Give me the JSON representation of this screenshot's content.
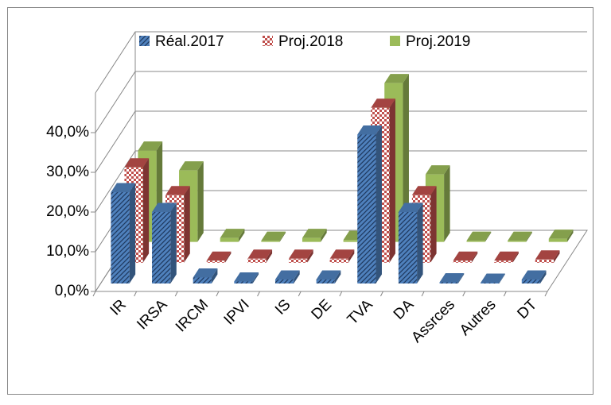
{
  "chart_data": {
    "type": "bar3d",
    "categories": [
      "IR",
      "IRSA",
      "IRCM",
      "IPVI",
      "IS",
      "DE",
      "TVA",
      "DA",
      "Assrces",
      "Autres",
      "DT"
    ],
    "series": [
      {
        "name": "Réal.2017",
        "color": "#4f81bd",
        "pattern": "hatch",
        "values": [
          23,
          18,
          1.5,
          0.5,
          1,
          1,
          37.5,
          18,
          0.3,
          0.2,
          1
        ]
      },
      {
        "name": "Proj.2018",
        "color": "#c0504d",
        "pattern": "check",
        "values": [
          24,
          17,
          0.5,
          1,
          1,
          1,
          39,
          17,
          0.5,
          0.5,
          0.8
        ]
      },
      {
        "name": "Proj.2019",
        "color": "#9bbb59",
        "pattern": "solid",
        "values": [
          23,
          18,
          1,
          0.3,
          1,
          0.5,
          40,
          17,
          0.3,
          0.3,
          0.8
        ]
      }
    ],
    "ylim": [
      0,
      50
    ],
    "yticks": [
      {
        "value": 0,
        "label": "0,0%"
      },
      {
        "value": 10,
        "label": "10,0%"
      },
      {
        "value": 20,
        "label": "20,0%"
      },
      {
        "value": 30,
        "label": "30,0%"
      },
      {
        "value": 40,
        "label": "40,0%"
      }
    ],
    "grid": true,
    "legend": "top"
  }
}
